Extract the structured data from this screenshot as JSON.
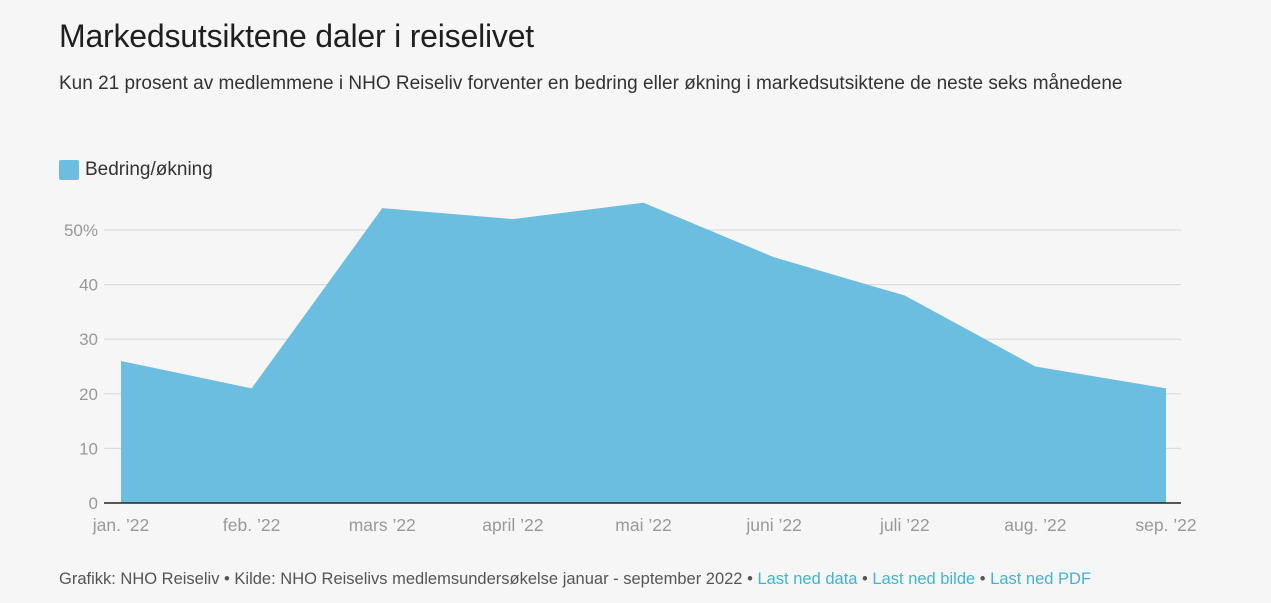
{
  "header": {
    "title": "Markedsutsiktene daler i reiselivet",
    "subtitle": "Kun 21 prosent av medlemmene i NHO Reiseliv forventer en bedring eller økning i markedsutsiktene de neste seks månedene"
  },
  "chart_data": {
    "type": "area",
    "title": "Markedsutsiktene daler i reiselivet",
    "subtitle": "Kun 21 prosent av medlemmene i NHO Reiseliv forventer en bedring eller økning i markedsutsiktene de neste seks månedene",
    "categories": [
      "jan. ’22",
      "feb. ’22",
      "mars ’22",
      "april ’22",
      "mai ’22",
      "juni ’22",
      "juli ’22",
      "aug. ’22",
      "sep. ’22"
    ],
    "series": [
      {
        "name": "Bedring/økning",
        "values": [
          26,
          21,
          54,
          52,
          55,
          45,
          38,
          25,
          21
        ],
        "color": "#6bbee0"
      }
    ],
    "yticks": [
      {
        "value": 0,
        "label": "0"
      },
      {
        "value": 10,
        "label": "10"
      },
      {
        "value": 20,
        "label": "20"
      },
      {
        "value": 30,
        "label": "30"
      },
      {
        "value": 40,
        "label": "40"
      },
      {
        "value": 50,
        "label": "50%"
      }
    ],
    "ylim": [
      0,
      50
    ],
    "xlabel": "",
    "ylabel": "",
    "grid": true,
    "legend": "top-left"
  },
  "footer": {
    "credit": "Grafikk: NHO Reiseliv",
    "source": "Kilde: NHO Reiselivs medlemsundersøkelse januar - september 2022",
    "link_data": "Last ned data",
    "link_image": "Last ned bilde",
    "link_pdf": "Last ned PDF",
    "separator": "•",
    "link_color": "#3fb4d8"
  }
}
